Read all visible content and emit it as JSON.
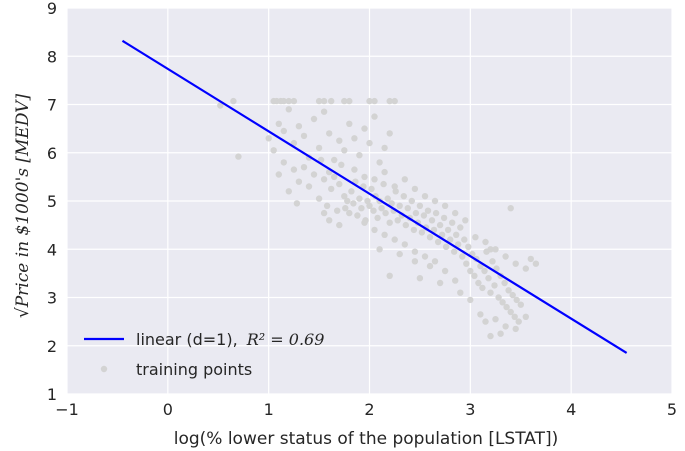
{
  "chart_data": {
    "type": "scatter",
    "title": "",
    "xlabel": "log(% lower status of the population [LSTAT])",
    "ylabel": "√Price in $1000's [MEDV]",
    "xlim": [
      -1,
      5
    ],
    "ylim": [
      1,
      9
    ],
    "x_ticks": [
      "−1",
      "0",
      "1",
      "2",
      "3",
      "4",
      "5"
    ],
    "y_ticks": [
      "1",
      "2",
      "3",
      "4",
      "5",
      "6",
      "7",
      "8",
      "9"
    ],
    "grid": true,
    "legend_position": "lower-left",
    "colors": {
      "background": "#eaeaf2",
      "grid": "#ffffff",
      "line": "#0000ff",
      "points": "#d3d3d3"
    },
    "fit_line": {
      "name": "linear (d=1), R² = 0.69",
      "legend_prefix": "linear (d=1),",
      "legend_math": "R² = 0.69",
      "x": [
        -0.45,
        4.55
      ],
      "y": [
        8.32,
        1.85
      ]
    },
    "scatter_series": {
      "name": "training points",
      "points": [
        [
          0.65,
          7.07
        ],
        [
          0.7,
          5.92
        ],
        [
          0.52,
          6.98
        ],
        [
          1.05,
          7.07
        ],
        [
          1.08,
          7.07
        ],
        [
          1.12,
          7.07
        ],
        [
          1.15,
          7.07
        ],
        [
          1.2,
          7.07
        ],
        [
          1.25,
          7.07
        ],
        [
          1.5,
          7.07
        ],
        [
          1.55,
          7.07
        ],
        [
          1.62,
          7.07
        ],
        [
          1.75,
          7.07
        ],
        [
          1.8,
          7.07
        ],
        [
          2.0,
          7.07
        ],
        [
          2.05,
          7.07
        ],
        [
          2.2,
          7.07
        ],
        [
          2.25,
          7.07
        ],
        [
          1.0,
          6.3
        ],
        [
          1.05,
          6.05
        ],
        [
          1.1,
          6.6
        ],
        [
          1.15,
          6.45
        ],
        [
          1.2,
          6.9
        ],
        [
          1.25,
          6.2
        ],
        [
          1.3,
          6.55
        ],
        [
          1.35,
          6.35
        ],
        [
          1.4,
          5.9
        ],
        [
          1.45,
          6.7
        ],
        [
          1.5,
          6.1
        ],
        [
          1.55,
          6.85
        ],
        [
          1.6,
          6.4
        ],
        [
          1.65,
          5.85
        ],
        [
          1.7,
          6.25
        ],
        [
          1.75,
          6.05
        ],
        [
          1.8,
          6.6
        ],
        [
          1.85,
          6.3
        ],
        [
          1.9,
          5.95
        ],
        [
          1.95,
          6.5
        ],
        [
          2.0,
          6.2
        ],
        [
          2.05,
          6.75
        ],
        [
          2.1,
          5.8
        ],
        [
          2.15,
          6.1
        ],
        [
          2.2,
          6.4
        ],
        [
          1.1,
          5.55
        ],
        [
          1.15,
          5.8
        ],
        [
          1.2,
          5.2
        ],
        [
          1.25,
          5.65
        ],
        [
          1.28,
          4.95
        ],
        [
          1.3,
          5.4
        ],
        [
          1.35,
          5.7
        ],
        [
          1.4,
          5.3
        ],
        [
          1.45,
          5.55
        ],
        [
          1.5,
          5.05
        ],
        [
          1.52,
          5.85
        ],
        [
          1.55,
          5.45
        ],
        [
          1.58,
          4.9
        ],
        [
          1.6,
          5.6
        ],
        [
          1.62,
          5.25
        ],
        [
          1.65,
          5.5
        ],
        [
          1.68,
          4.8
        ],
        [
          1.7,
          5.35
        ],
        [
          1.72,
          5.75
        ],
        [
          1.75,
          5.1
        ],
        [
          1.76,
          4.85
        ],
        [
          1.78,
          5.0
        ],
        [
          1.8,
          4.75
        ],
        [
          1.82,
          5.2
        ],
        [
          1.84,
          4.95
        ],
        [
          1.86,
          5.4
        ],
        [
          1.88,
          4.7
        ],
        [
          1.9,
          5.05
        ],
        [
          1.92,
          4.85
        ],
        [
          1.94,
          5.3
        ],
        [
          1.96,
          4.6
        ],
        [
          1.98,
          5.0
        ],
        [
          2.0,
          4.9
        ],
        [
          2.02,
          5.25
        ],
        [
          2.04,
          4.8
        ],
        [
          2.06,
          5.1
        ],
        [
          2.08,
          4.65
        ],
        [
          2.1,
          5.0
        ],
        [
          2.12,
          4.85
        ],
        [
          2.14,
          5.35
        ],
        [
          2.16,
          4.75
        ],
        [
          2.18,
          5.05
        ],
        [
          2.2,
          4.55
        ],
        [
          2.22,
          4.95
        ],
        [
          2.24,
          4.8
        ],
        [
          2.26,
          5.2
        ],
        [
          2.28,
          4.6
        ],
        [
          2.3,
          4.9
        ],
        [
          2.32,
          4.7
        ],
        [
          2.34,
          5.1
        ],
        [
          2.36,
          4.5
        ],
        [
          2.38,
          4.85
        ],
        [
          2.4,
          4.65
        ],
        [
          2.42,
          5.0
        ],
        [
          2.44,
          4.4
        ],
        [
          2.46,
          4.75
        ],
        [
          2.48,
          4.55
        ],
        [
          2.5,
          4.9
        ],
        [
          2.52,
          4.35
        ],
        [
          2.54,
          4.7
        ],
        [
          2.56,
          4.45
        ],
        [
          2.58,
          4.8
        ],
        [
          2.6,
          4.25
        ],
        [
          2.62,
          4.6
        ],
        [
          2.64,
          4.4
        ],
        [
          2.66,
          4.75
        ],
        [
          2.68,
          4.15
        ],
        [
          2.7,
          4.5
        ],
        [
          2.72,
          4.3
        ],
        [
          2.74,
          4.65
        ],
        [
          2.76,
          4.05
        ],
        [
          2.78,
          4.4
        ],
        [
          2.8,
          4.2
        ],
        [
          2.82,
          4.55
        ],
        [
          2.84,
          3.95
        ],
        [
          2.86,
          4.3
        ],
        [
          2.88,
          4.1
        ],
        [
          2.9,
          4.45
        ],
        [
          2.92,
          3.85
        ],
        [
          2.94,
          4.2
        ],
        [
          1.85,
          5.65
        ],
        [
          1.95,
          5.5
        ],
        [
          2.05,
          5.45
        ],
        [
          2.15,
          5.6
        ],
        [
          2.25,
          5.3
        ],
        [
          2.35,
          5.45
        ],
        [
          2.45,
          5.25
        ],
        [
          2.55,
          5.1
        ],
        [
          2.65,
          5.0
        ],
        [
          2.75,
          4.9
        ],
        [
          2.85,
          4.75
        ],
        [
          2.95,
          4.6
        ],
        [
          2.15,
          4.3
        ],
        [
          2.25,
          4.2
        ],
        [
          2.35,
          4.1
        ],
        [
          2.45,
          3.95
        ],
        [
          2.55,
          3.85
        ],
        [
          2.65,
          3.75
        ],
        [
          2.05,
          4.4
        ],
        [
          1.95,
          4.55
        ],
        [
          2.96,
          3.7
        ],
        [
          2.98,
          4.05
        ],
        [
          3.0,
          3.55
        ],
        [
          3.02,
          3.9
        ],
        [
          3.04,
          3.45
        ],
        [
          3.06,
          3.8
        ],
        [
          3.08,
          3.3
        ],
        [
          3.1,
          3.65
        ],
        [
          3.12,
          3.2
        ],
        [
          3.14,
          3.55
        ],
        [
          3.16,
          3.95
        ],
        [
          3.18,
          3.4
        ],
        [
          3.2,
          3.1
        ],
        [
          3.22,
          3.75
        ],
        [
          3.24,
          3.25
        ],
        [
          3.26,
          3.6
        ],
        [
          3.28,
          3.0
        ],
        [
          3.3,
          3.45
        ],
        [
          3.32,
          2.9
        ],
        [
          3.34,
          3.3
        ],
        [
          3.36,
          2.8
        ],
        [
          3.38,
          3.15
        ],
        [
          3.4,
          2.7
        ],
        [
          3.42,
          3.05
        ],
        [
          3.44,
          2.6
        ],
        [
          3.46,
          2.95
        ],
        [
          3.48,
          2.5
        ],
        [
          3.5,
          2.85
        ],
        [
          3.05,
          4.25
        ],
        [
          3.15,
          4.15
        ],
        [
          3.25,
          4.0
        ],
        [
          3.35,
          3.85
        ],
        [
          3.45,
          3.7
        ],
        [
          3.55,
          3.6
        ],
        [
          3.6,
          3.8
        ],
        [
          3.65,
          3.7
        ],
        [
          3.4,
          4.85
        ],
        [
          3.2,
          4.0
        ],
        [
          3.1,
          2.65
        ],
        [
          3.0,
          2.95
        ],
        [
          3.15,
          2.5
        ],
        [
          3.25,
          2.55
        ],
        [
          3.3,
          2.25
        ],
        [
          3.45,
          2.35
        ],
        [
          3.55,
          2.6
        ],
        [
          3.2,
          2.2
        ],
        [
          3.35,
          2.4
        ],
        [
          2.85,
          3.35
        ],
        [
          2.9,
          3.1
        ],
        [
          2.7,
          3.3
        ],
        [
          2.75,
          3.55
        ],
        [
          2.6,
          3.65
        ],
        [
          2.5,
          3.4
        ],
        [
          2.45,
          3.75
        ],
        [
          2.2,
          3.45
        ],
        [
          1.6,
          4.6
        ],
        [
          1.55,
          4.75
        ],
        [
          1.7,
          4.5
        ],
        [
          2.3,
          3.9
        ],
        [
          2.1,
          4.0
        ]
      ]
    }
  }
}
